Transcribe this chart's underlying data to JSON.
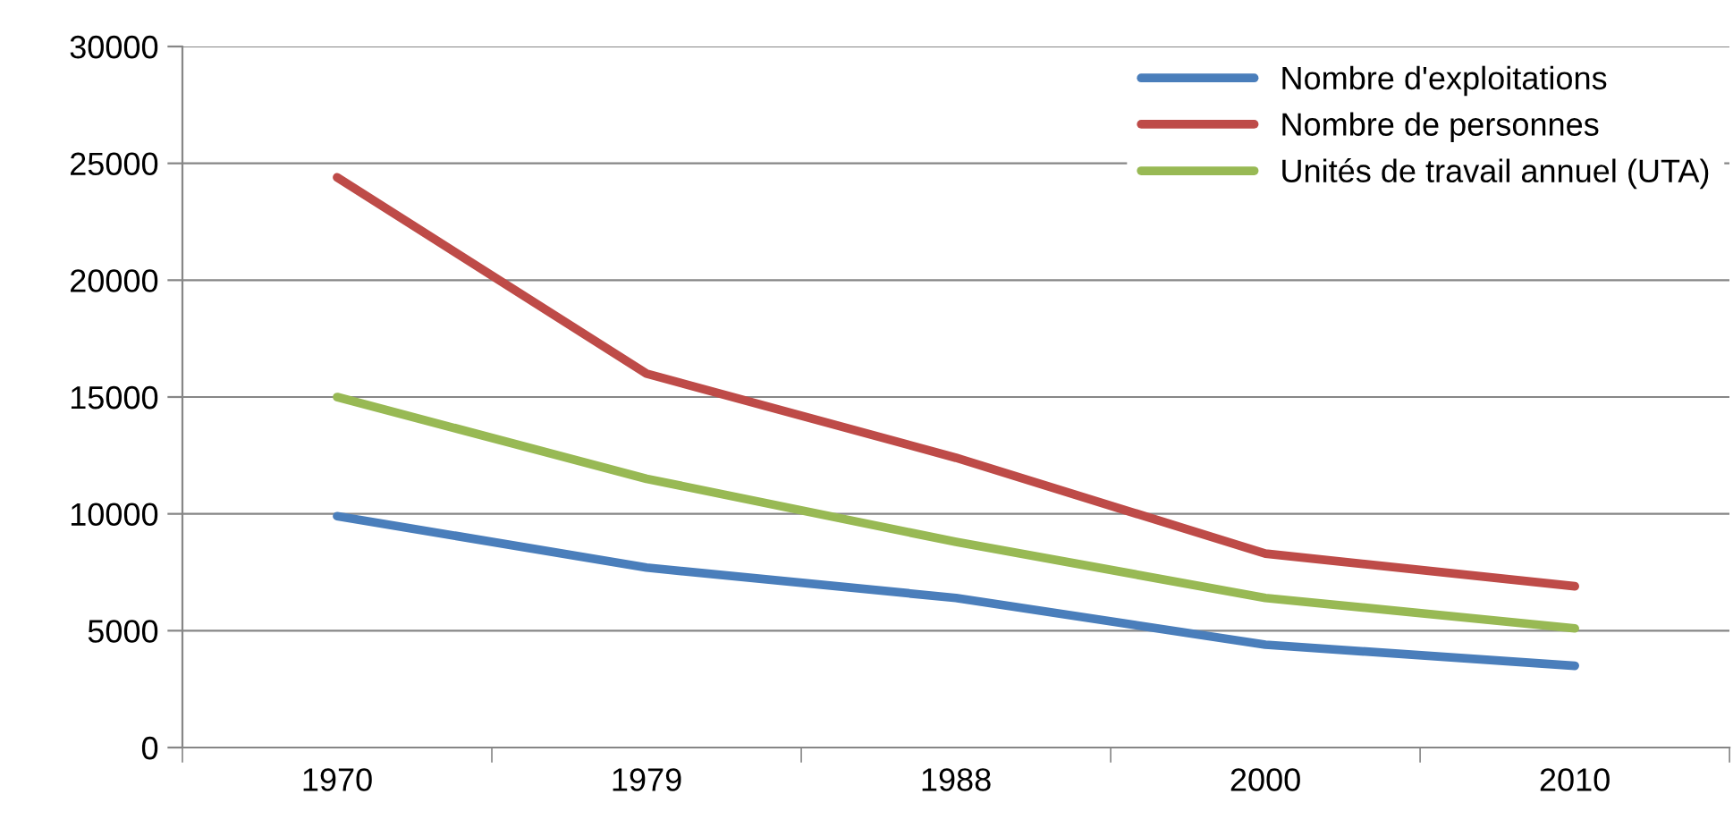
{
  "chart_data": {
    "type": "line",
    "categories": [
      "1970",
      "1979",
      "1988",
      "2000",
      "2010"
    ],
    "series": [
      {
        "name": "Nombre d'exploitations",
        "color": "#4a7ebb",
        "values": [
          9900,
          7700,
          6400,
          4400,
          3500
        ]
      },
      {
        "name": "Nombre de personnes",
        "color": "#be4b48",
        "values": [
          24400,
          16000,
          12400,
          8300,
          6900
        ]
      },
      {
        "name": "Unités de travail annuel (UTA)",
        "color": "#98b954",
        "values": [
          15000,
          11500,
          8800,
          6400,
          5100
        ]
      }
    ],
    "ylim": [
      0,
      30000
    ],
    "yticks": [
      0,
      5000,
      10000,
      15000,
      20000,
      25000,
      30000
    ],
    "grid": "y",
    "legend": "top right",
    "marker": "none",
    "line_style": "solid"
  }
}
